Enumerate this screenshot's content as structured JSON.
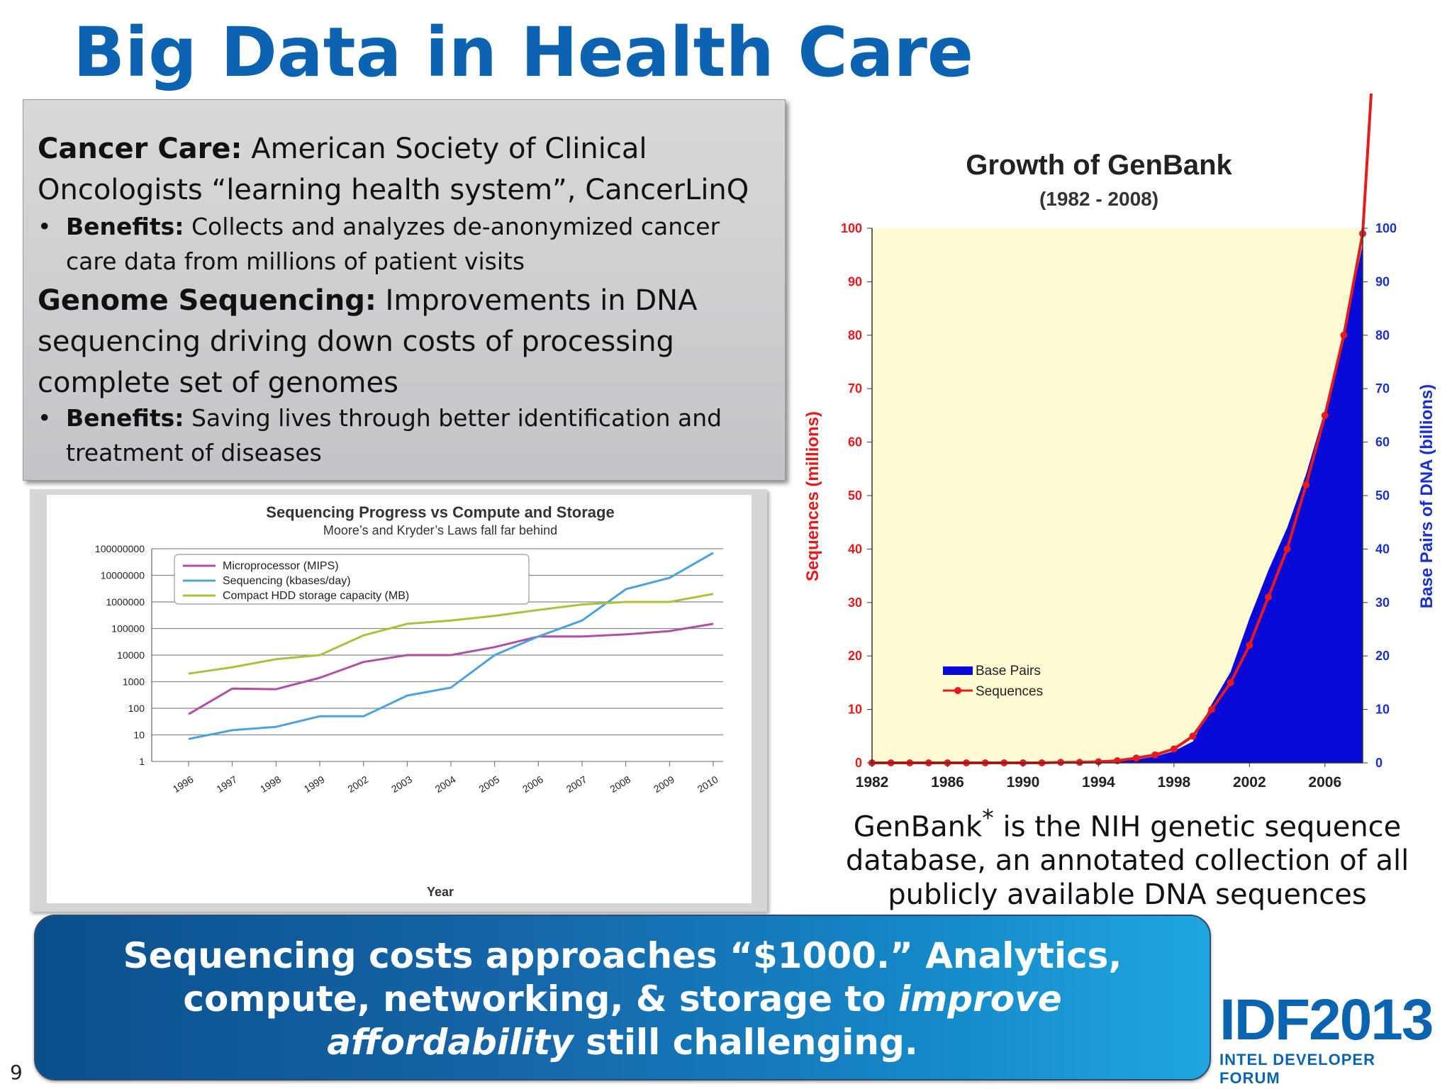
{
  "slide": {
    "title": "Big Data in Health Care",
    "title_color": "#0c63b2",
    "slide_number": "9"
  },
  "info_box": {
    "para1_bold": "Cancer Care:",
    "para1_text": " American Society of Clinical Oncologists “learning health system”, CancerLinQ",
    "bullet1_bold": "Benefits:",
    "bullet1_text": " Collects and analyzes de-anonymized cancer care data from millions of patient visits",
    "para2_bold": "Genome Sequencing:",
    "para2_text": " Improvements in DNA sequencing driving down costs of processing complete set of genomes",
    "bullet2_bold": "Benefits:",
    "bullet2_text": " Saving lives through better identification and treatment of diseases",
    "bullet_glyph": "•"
  },
  "genbank_caption": {
    "before": "GenBank",
    "sup": "*",
    "after": " is the NIH genetic sequence database,  an annotated collection of all publicly available DNA sequences"
  },
  "banner": {
    "part1": "Sequencing costs approaches “$1000.” Analytics, compute, networking, & storage to ",
    "italic1": "improve",
    "italic2": "affordability",
    "part2": " still challenging."
  },
  "logo": {
    "main": "IDF2013",
    "sub": "INTEL DEVELOPER FORUM"
  },
  "chart_data": [
    {
      "type": "line",
      "scale": "log",
      "title": "Sequencing Progress vs Compute and Storage",
      "subtitle": "Moore’s and Kryder’s Laws fall far behind",
      "xlabel": "Year",
      "ylabel": "",
      "categories": [
        "1996",
        "1997",
        "1998",
        "1999",
        "2002",
        "2003",
        "2004",
        "2005",
        "2006",
        "2007",
        "2008",
        "2009",
        "2010"
      ],
      "y_ticks": [
        "100000000",
        "10000000",
        "1000000",
        "100000",
        "10000",
        "1000",
        "100",
        "10",
        "1"
      ],
      "ylim": [
        1,
        100000000
      ],
      "legend_position": "top-left",
      "series": [
        {
          "name": "Microprocessor (MIPS)",
          "color": "#b14fa6",
          "values": [
            60,
            550,
            520,
            1400,
            5500,
            10000,
            10000,
            20000,
            50000,
            50000,
            60000,
            80000,
            150000
          ]
        },
        {
          "name": "Sequencing (kbases/day)",
          "color": "#4aa3df",
          "values": [
            7,
            15,
            20,
            50,
            50,
            300,
            600,
            10000,
            50000,
            200000,
            3000000,
            8000000,
            70000000
          ]
        },
        {
          "name": "Compact HDD storage capacity (MB)",
          "color": "#a8c23c",
          "values": [
            2000,
            3500,
            7000,
            10000,
            55000,
            150000,
            200000,
            300000,
            500000,
            800000,
            1000000,
            1000000,
            2000000
          ]
        }
      ]
    },
    {
      "type": "area",
      "title": "Growth of GenBank",
      "subtitle": "(1982 - 2008)",
      "xlabel": "",
      "ylabel": "Sequences (millions)",
      "y2label": "Base Pairs of DNA (billions)",
      "ylim": [
        0,
        100
      ],
      "y2lim": [
        0,
        100
      ],
      "y_ticks": [
        "0",
        "10",
        "20",
        "30",
        "40",
        "50",
        "60",
        "70",
        "80",
        "90",
        "100"
      ],
      "y2_ticks": [
        "0",
        "10",
        "20",
        "30",
        "40",
        "50",
        "60",
        "70",
        "80",
        "90",
        "100"
      ],
      "x_tick_labels": [
        "1982",
        "1986",
        "1990",
        "1994",
        "1998",
        "2002",
        "2006"
      ],
      "xlim": [
        1982,
        2008
      ],
      "legend_position": "bottom-left",
      "series": [
        {
          "name": "Base Pairs",
          "type": "area",
          "axis": "right",
          "color": "#0a0ad8",
          "x": [
            1982,
            1990,
            1994,
            1995,
            1996,
            1997,
            1998,
            1999,
            2000,
            2001,
            2002,
            2003,
            2004,
            2005,
            2006,
            2007,
            2008
          ],
          "values": [
            0,
            0,
            0.1,
            0.3,
            0.6,
            1.2,
            2.2,
            4,
            11,
            17,
            27,
            36,
            44,
            54,
            66,
            80,
            97
          ]
        },
        {
          "name": "Sequences",
          "type": "line",
          "axis": "left",
          "color": "#e41a1c",
          "x": [
            1982,
            1983,
            1984,
            1985,
            1986,
            1987,
            1988,
            1989,
            1990,
            1991,
            1992,
            1993,
            1994,
            1995,
            1996,
            1997,
            1998,
            1999,
            2000,
            2001,
            2002,
            2003,
            2004,
            2005,
            2006,
            2007,
            2008
          ],
          "values": [
            0,
            0,
            0,
            0,
            0,
            0,
            0,
            0,
            0,
            0,
            0.1,
            0.1,
            0.2,
            0.4,
            0.9,
            1.5,
            2.6,
            5,
            10,
            15,
            22,
            31,
            40,
            52,
            65,
            80,
            99
          ]
        }
      ]
    }
  ]
}
